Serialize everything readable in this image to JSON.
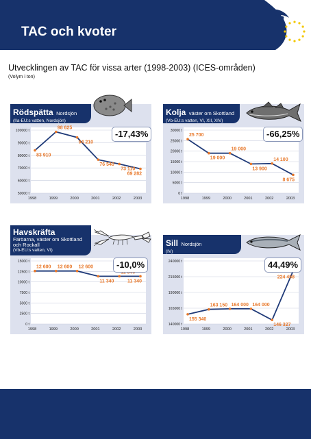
{
  "header": {
    "title": "TAC och kvoter"
  },
  "subtitle": "Utvecklingen av TAC för vissa arter (1998-2003) (ICES-områden)",
  "subnote": "(Volym i ton)",
  "colors": {
    "navy": "#17326b",
    "panel": "#dde1ee",
    "line": "#1f3a78",
    "point": "#e8782a",
    "label": "#e8782a",
    "logo_stars": "#f3c700"
  },
  "chart_data": [
    {
      "type": "line",
      "name": "Rödspätta",
      "region": "Nordsjön",
      "area": "(IIa-EU:s vatten, Nordsjön)",
      "categories": [
        "1998",
        "1999",
        "2000",
        "2001",
        "2002",
        "2003"
      ],
      "values": [
        83910,
        98625,
        94210,
        76540,
        73110,
        69282
      ],
      "value_labels": [
        "83 910",
        "98 625",
        "94 210",
        "76 540",
        "73 110",
        "69 282"
      ],
      "y_ticks": [
        50000,
        60000,
        70000,
        80000,
        90000,
        100000
      ],
      "y_tick_labels": [
        "50000 t",
        "60000 t",
        "70000 t",
        "80000 t",
        "90000 t",
        "100000 t"
      ],
      "ylim": [
        50000,
        100000
      ],
      "change": "-17,43%",
      "grid": true
    },
    {
      "type": "line",
      "name": "Kolja",
      "region": "väster om Skottland",
      "area": "(Vb-EU:s vatten, VI, XII, XIV)",
      "categories": [
        "1998",
        "1999",
        "2000",
        "2001",
        "2002",
        "2003"
      ],
      "values": [
        25700,
        19000,
        19000,
        13900,
        14100,
        8675
      ],
      "value_labels": [
        "25 700",
        "19 000",
        "19 000",
        "13 900",
        "14 100",
        "8 675"
      ],
      "y_ticks": [
        0,
        5000,
        10000,
        15000,
        20000,
        25000,
        30000
      ],
      "y_tick_labels": [
        "0 t",
        "5000 t",
        "10000 t",
        "15000 t",
        "20000 t",
        "25000 t",
        "30000 t"
      ],
      "ylim": [
        0,
        30000
      ],
      "change": "-66,25%",
      "grid": true
    },
    {
      "type": "line",
      "name": "Havskräfta",
      "region": "Färöarna, väster om Skottland och Rockall",
      "area": "(Vb-EU:s vatten, VI)",
      "categories": [
        "1998",
        "1999",
        "2000",
        "2001",
        "2002",
        "2003"
      ],
      "values": [
        12600,
        12600,
        12600,
        11340,
        11340,
        11340
      ],
      "value_labels": [
        "12 600",
        "12 600",
        "12 600",
        "11 340",
        "11 340",
        "11 340"
      ],
      "y_ticks": [
        0,
        2500,
        5000,
        7500,
        10000,
        12500,
        15000
      ],
      "y_tick_labels": [
        "0 t",
        "2500 t",
        "5000 t",
        "7500 t",
        "10000 t",
        "12500 t",
        "15000 t"
      ],
      "ylim": [
        0,
        15000
      ],
      "change": "-10,0%",
      "grid": true
    },
    {
      "type": "line",
      "name": "Sill",
      "region": "Nordsjön",
      "area": "(IV)",
      "categories": [
        "1998",
        "1999",
        "2000",
        "2001",
        "2002",
        "2003"
      ],
      "values": [
        155340,
        163150,
        164000,
        164000,
        146327,
        224458
      ],
      "value_labels": [
        "155 340",
        "163 150",
        "164 000",
        "164 000",
        "146 327",
        "224 458"
      ],
      "y_ticks": [
        140000,
        165000,
        190000,
        215000,
        240000
      ],
      "y_tick_labels": [
        "140000 t",
        "165000 t",
        "190000 t",
        "215000 t",
        "240000 t"
      ],
      "ylim": [
        140000,
        240000
      ],
      "change": "44,49%",
      "grid": true
    }
  ]
}
